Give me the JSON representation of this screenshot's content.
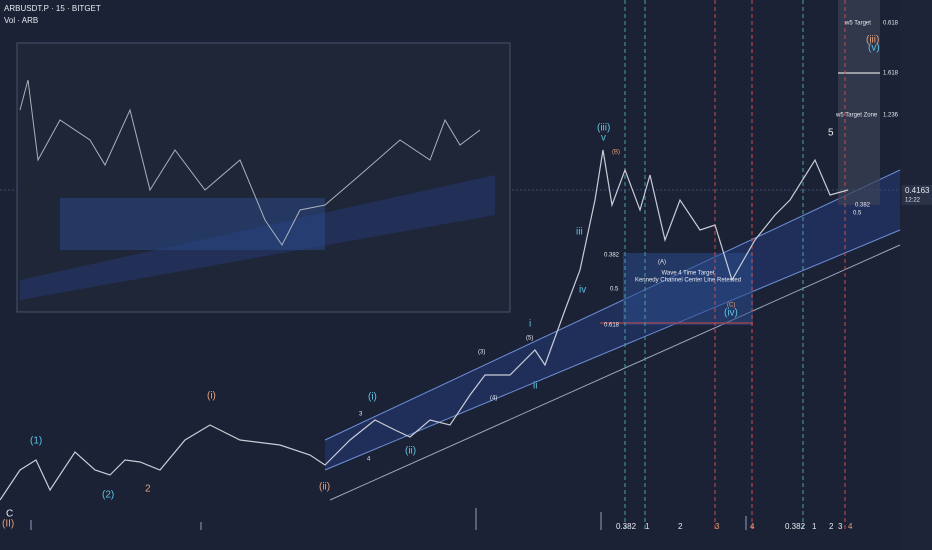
{
  "header": {
    "symbol": "ARBUSDT.P · 15 · BITGET",
    "indicator": "Vol · ARB"
  },
  "price_axis": {
    "last_price": "0.4163",
    "countdown": "12:22"
  },
  "targets": [
    {
      "label": "w5 Target",
      "level": "0.618"
    },
    {
      "level": "1.618"
    },
    {
      "label": "w5 Target Zone",
      "level": "1.236"
    }
  ],
  "fib_box": {
    "upper": "0.382",
    "middle": "0.5",
    "lower": "0.618"
  },
  "notes": [
    "Wave 4 Time Target",
    "Kennedy Channel Center Line Retested",
    "0.382",
    "0.5"
  ],
  "time_fibs": [
    "0.382",
    "1",
    "2",
    "3",
    "4",
    "0.382",
    "1",
    "2",
    "3",
    "4"
  ],
  "waves": [
    "(iii)",
    "(iv)",
    "(ii)",
    "(i)",
    "iii",
    "iv",
    "i",
    "ii",
    "(iii)",
    "(v)",
    "v",
    "(1)",
    "(2)",
    "C",
    "(A)",
    "(B)",
    "(C)",
    "(3)",
    "(4)",
    "(5)",
    "3",
    "4",
    "5",
    "(ii)",
    "(i)",
    "2",
    "(II)"
  ]
}
